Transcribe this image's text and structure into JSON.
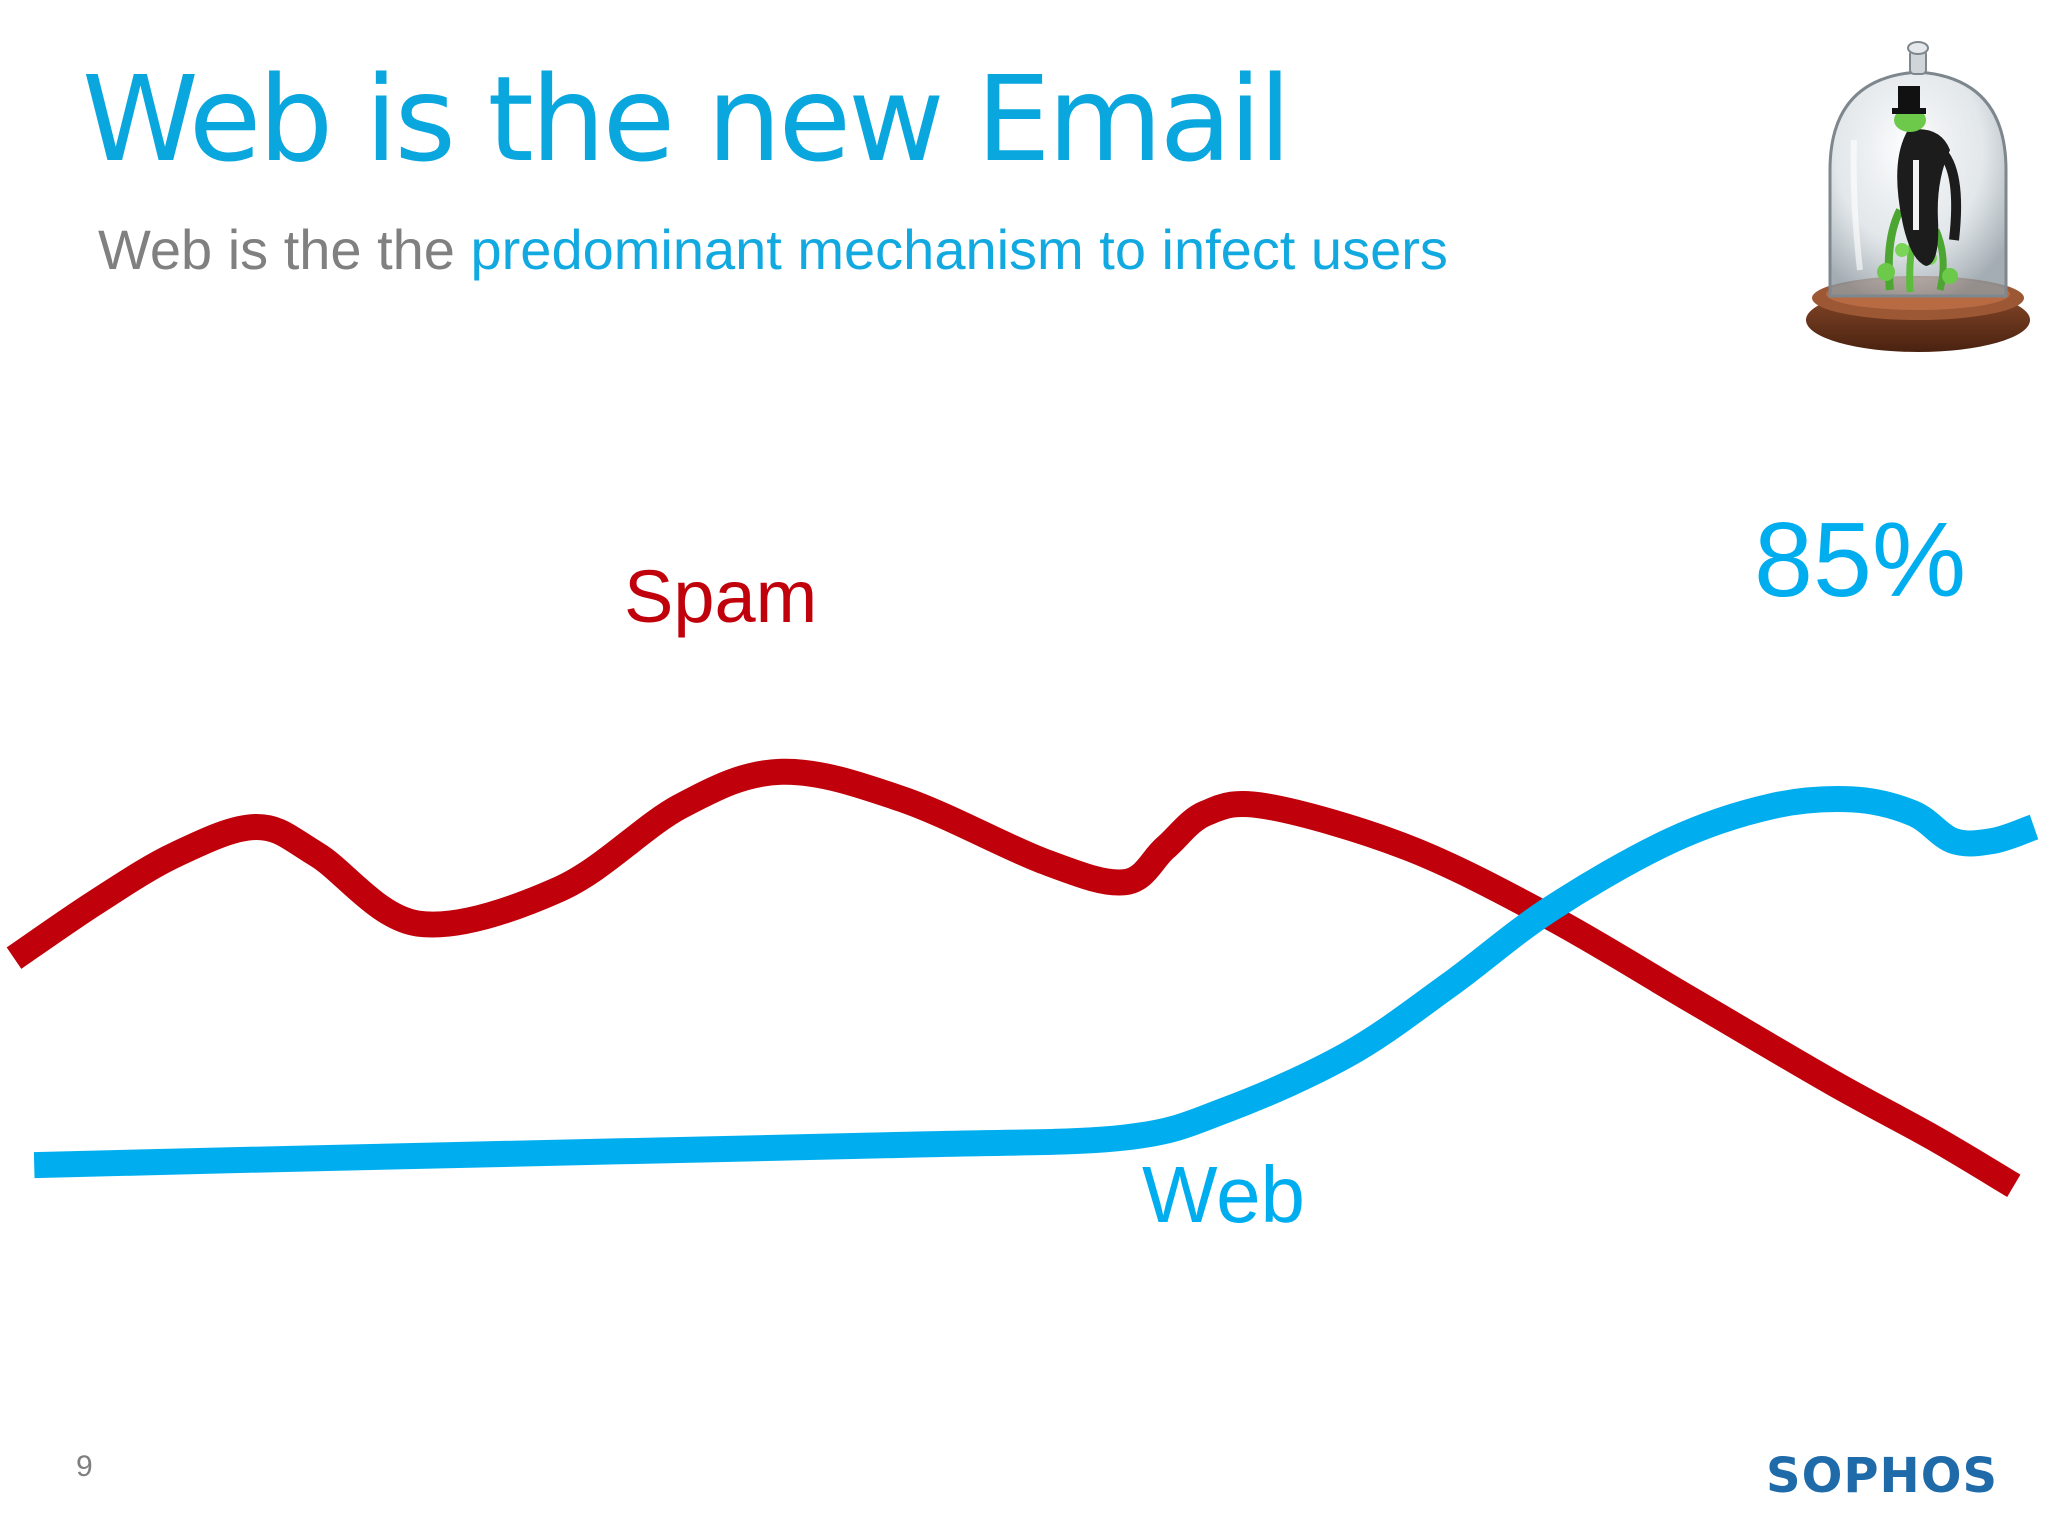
{
  "slide": {
    "title": "Web is the new Email",
    "subtitle_prefix": "Web is the the",
    "subtitle_highlight": "predominant mechanism to infect users",
    "page_number": "9",
    "logo_text": "SOPHOS",
    "illustration": "bell-jar-character-illustration"
  },
  "colors": {
    "title": "#0aa7de",
    "subtitle_gray": "#808080",
    "spam": "#c0000a",
    "web": "#00aeef",
    "logo": "#1f6aa8"
  },
  "chart_data": {
    "type": "line",
    "title": "",
    "xlabel": "",
    "ylabel": "",
    "axes_visible": false,
    "grid": false,
    "xlim": [
      0,
      100
    ],
    "ylim": [
      0,
      100
    ],
    "series": [
      {
        "name": "Spam",
        "color": "#c0000a",
        "points": [
          [
            0,
            51
          ],
          [
            4,
            59
          ],
          [
            8,
            66
          ],
          [
            12,
            70
          ],
          [
            15,
            66
          ],
          [
            20,
            56
          ],
          [
            27,
            61
          ],
          [
            33,
            73
          ],
          [
            38,
            78
          ],
          [
            44,
            74
          ],
          [
            51,
            65
          ],
          [
            55,
            62
          ],
          [
            57,
            67
          ],
          [
            59,
            72
          ],
          [
            62,
            73
          ],
          [
            69,
            67
          ],
          [
            76,
            57
          ],
          [
            83,
            45
          ],
          [
            90,
            33
          ],
          [
            95,
            25
          ],
          [
            99,
            18
          ]
        ]
      },
      {
        "name": "Web",
        "color": "#00aeef",
        "points": [
          [
            1,
            21
          ],
          [
            15,
            22
          ],
          [
            30,
            23
          ],
          [
            45,
            24
          ],
          [
            55,
            25
          ],
          [
            60,
            29
          ],
          [
            66,
            37
          ],
          [
            71,
            47
          ],
          [
            76,
            58
          ],
          [
            82,
            68
          ],
          [
            87,
            73
          ],
          [
            91,
            74
          ],
          [
            94,
            72
          ],
          [
            96,
            68
          ],
          [
            98,
            68
          ],
          [
            100,
            70
          ]
        ]
      }
    ],
    "annotations": [
      {
        "label": "Spam",
        "near": "spam-peak"
      },
      {
        "label": "Web",
        "near": "web-line-middle"
      },
      {
        "label": "85%",
        "near": "web-line-end"
      }
    ]
  }
}
